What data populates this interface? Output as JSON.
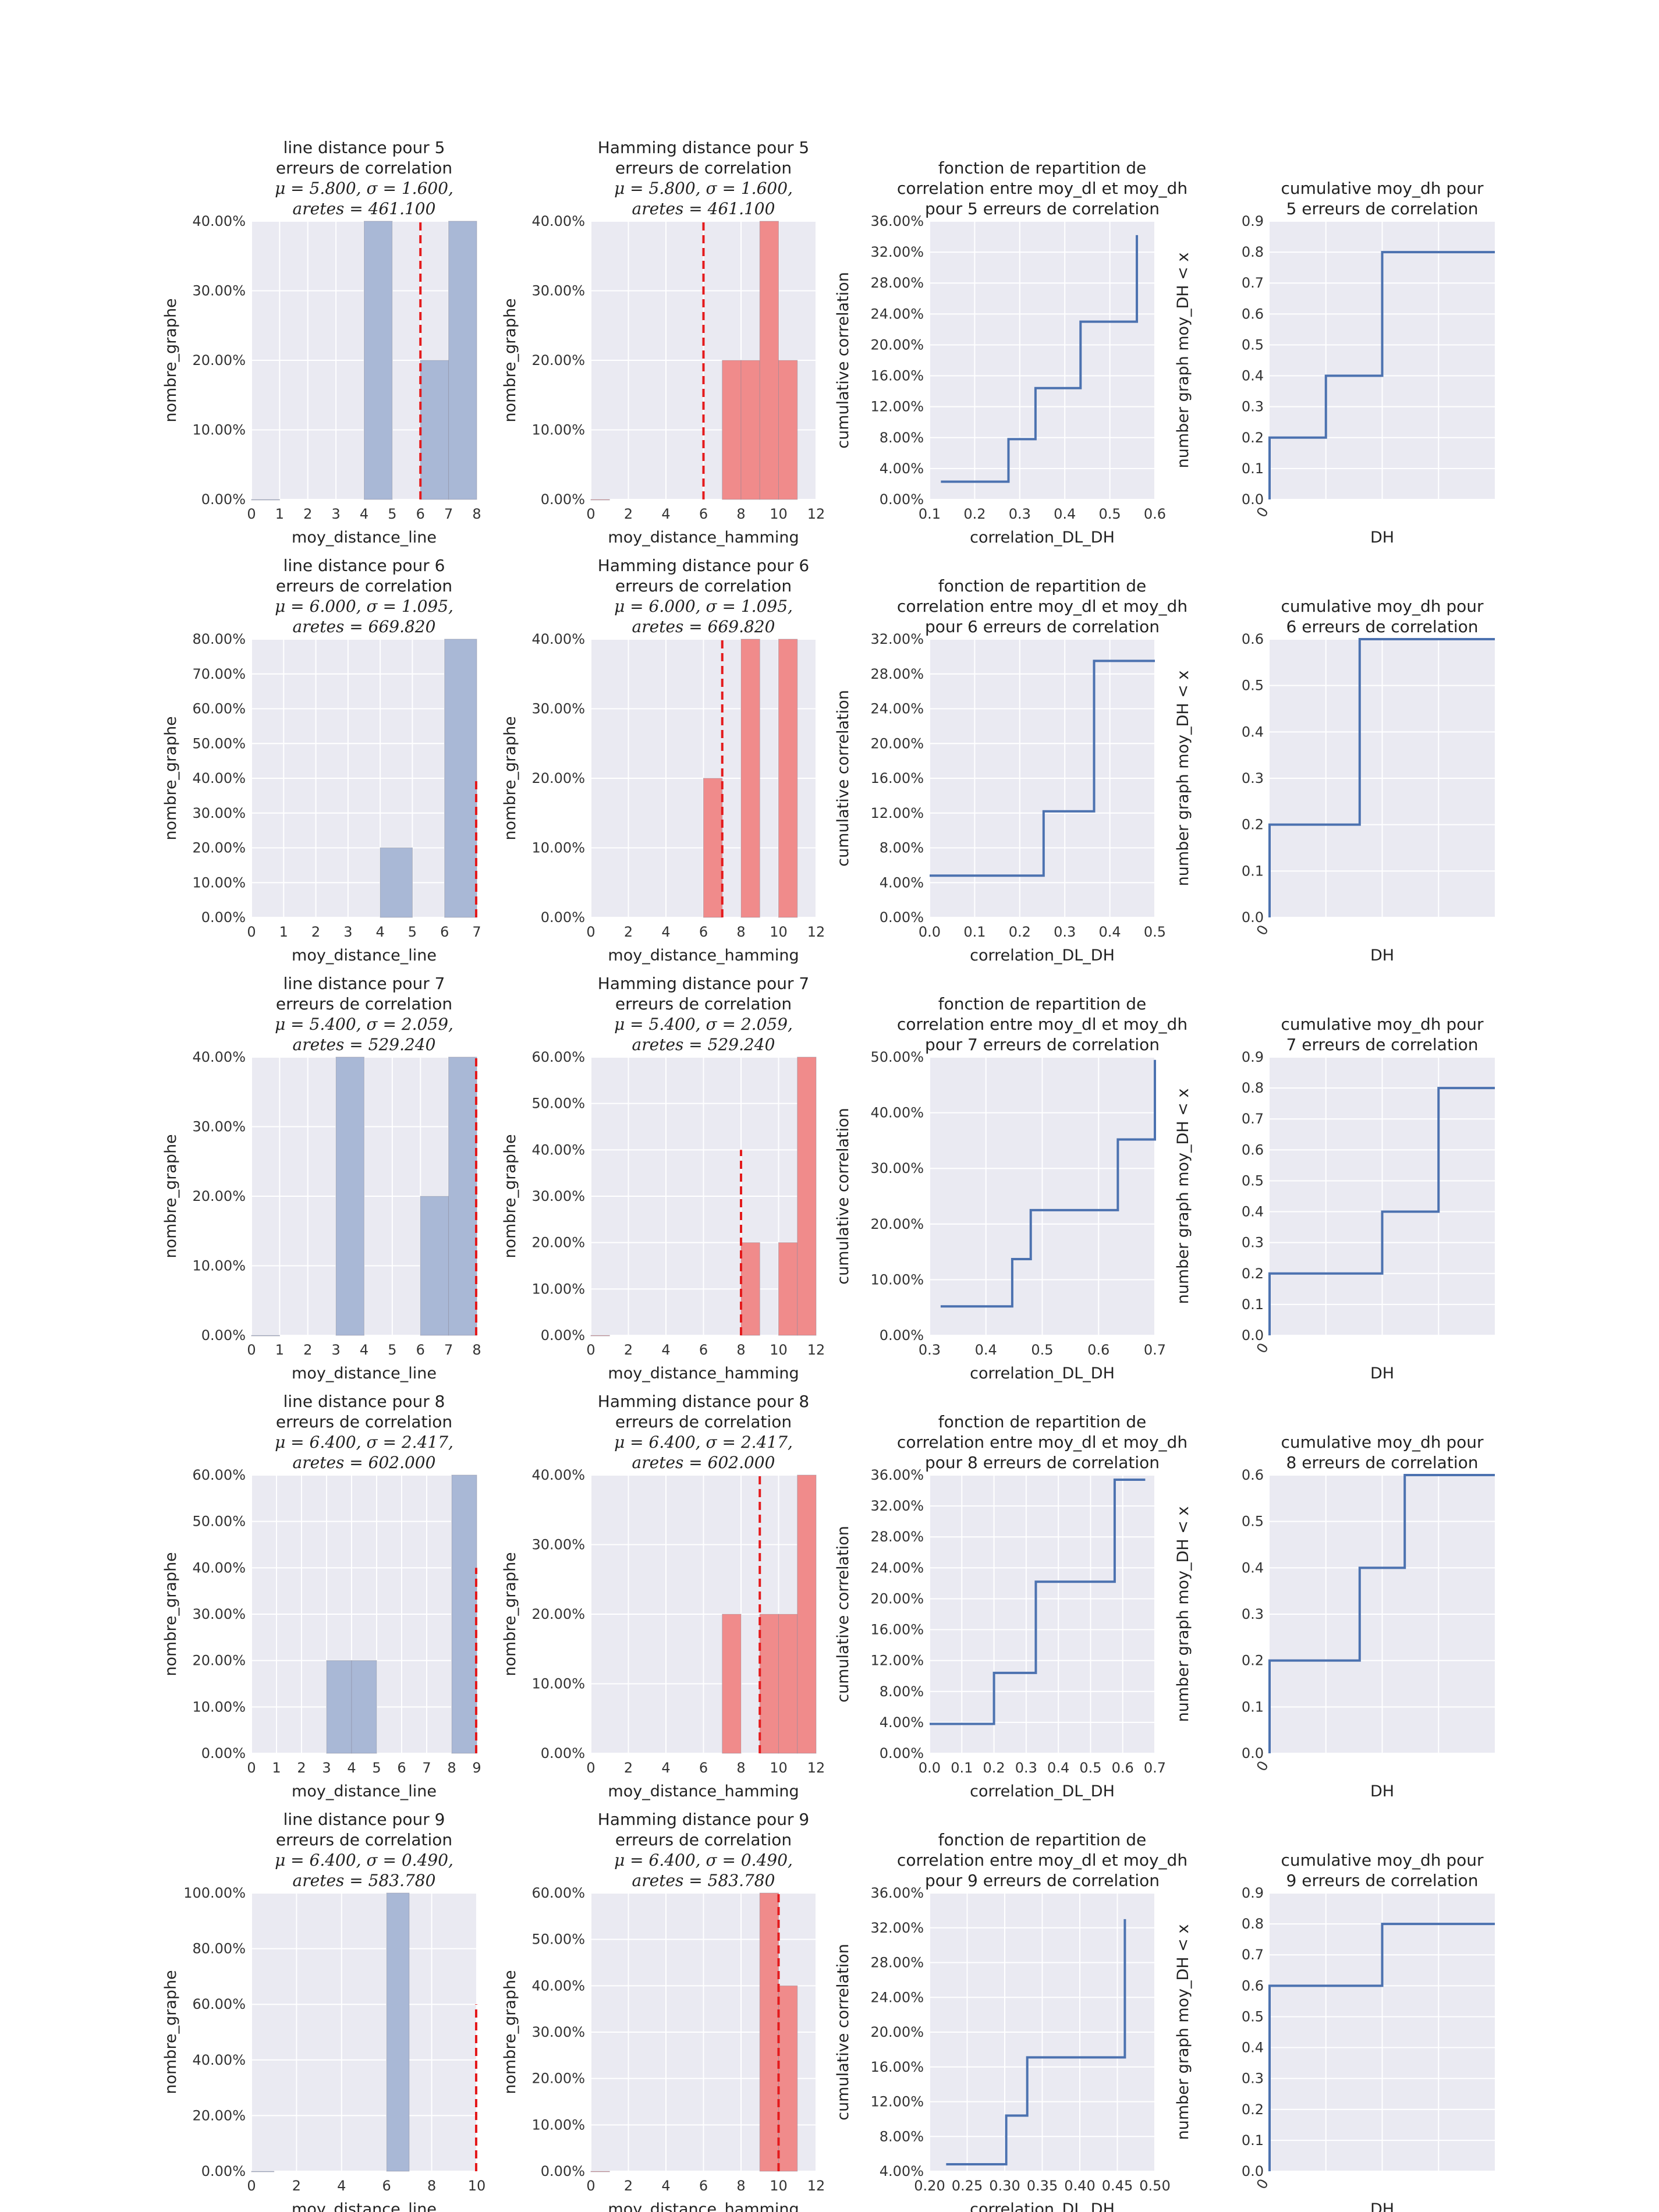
{
  "chart_data": [
    {
      "type": "bar",
      "title": "line distance pour 5\nerreurs de correlation",
      "subtitle": [
        "μ = 5.800, σ = 1.600,",
        "aretes = 461.100"
      ],
      "xlabel": "moy_distance_line",
      "ylabel": "nombre_graphe",
      "xlim": [
        0,
        8
      ],
      "ylim": [
        0,
        0.4
      ],
      "xticks": [
        "0",
        "1",
        "2",
        "3",
        "4",
        "5",
        "6",
        "7",
        "8"
      ],
      "yticks": [
        "0.00%",
        "10.00%",
        "20.00%",
        "30.00%",
        "40.00%"
      ],
      "bars": [
        {
          "x0": 0,
          "x1": 1,
          "value": 0
        },
        {
          "x0": 4,
          "x1": 5,
          "value": 0.4
        },
        {
          "x0": 6,
          "x1": 7,
          "value": 0.2
        },
        {
          "x0": 7,
          "x1": 8,
          "value": 0.4
        }
      ],
      "vline": {
        "x": 6,
        "y": [
          0,
          0.4
        ]
      },
      "color": "#a9b8d6"
    },
    {
      "type": "bar",
      "title": "Hamming distance pour 5\nerreurs de correlation",
      "subtitle": [
        "μ = 5.800, σ = 1.600,",
        "aretes = 461.100"
      ],
      "xlabel": "moy_distance_hamming",
      "ylabel": "nombre_graphe",
      "xlim": [
        0,
        12
      ],
      "ylim": [
        0,
        0.4
      ],
      "xticks": [
        "0",
        "2",
        "4",
        "6",
        "8",
        "10",
        "12"
      ],
      "yticks": [
        "0.00%",
        "10.00%",
        "20.00%",
        "30.00%",
        "40.00%"
      ],
      "bars": [
        {
          "x0": 0,
          "x1": 1,
          "value": 0
        },
        {
          "x0": 7,
          "x1": 8,
          "value": 0.2
        },
        {
          "x0": 8,
          "x1": 9,
          "value": 0.2
        },
        {
          "x0": 9,
          "x1": 10,
          "value": 0.4
        },
        {
          "x0": 10,
          "x1": 11,
          "value": 0.2
        }
      ],
      "vline": {
        "x": 6,
        "y": [
          0,
          0.4
        ]
      },
      "color": "#f08b8b"
    },
    {
      "type": "line",
      "title": "fonction de repartition de\ncorrelation entre moy_dl et moy_dh\npour 5 erreurs de correlation",
      "xlabel": "correlation_DL_DH",
      "ylabel": "cumulative correlation",
      "xlim": [
        0.1,
        0.6
      ],
      "ylim": [
        0,
        0.36
      ],
      "xticks": [
        "0.1",
        "0.2",
        "0.3",
        "0.4",
        "0.5",
        "0.6"
      ],
      "yticks": [
        "0.00%",
        "4.00%",
        "8.00%",
        "12.00%",
        "16.00%",
        "20.00%",
        "24.00%",
        "28.00%",
        "32.00%",
        "36.00%"
      ],
      "x": [
        0.125,
        0.275,
        0.335,
        0.435,
        0.56
      ],
      "y": [
        0.023,
        0.078,
        0.144,
        0.23,
        0.342
      ]
    },
    {
      "type": "line",
      "title": "cumulative moy_dh pour\n5 erreurs de correlation",
      "xlabel": "DH",
      "ylabel": "number graph moy_DH < x",
      "xlim": [
        0,
        4
      ],
      "ylim": [
        0,
        0.9
      ],
      "xticks": [
        "0"
      ],
      "yticks": [
        "0.0",
        "0.1",
        "0.2",
        "0.3",
        "0.4",
        "0.5",
        "0.6",
        "0.7",
        "0.8",
        "0.9"
      ],
      "x": [
        0,
        1,
        2,
        4
      ],
      "y": [
        0.2,
        0.4,
        0.8,
        0.8
      ]
    },
    {
      "type": "bar",
      "title": "line distance pour 6\nerreurs de correlation",
      "subtitle": [
        "μ = 6.000, σ = 1.095,",
        "aretes = 669.820"
      ],
      "xlabel": "moy_distance_line",
      "ylabel": "nombre_graphe",
      "xlim": [
        0,
        7
      ],
      "ylim": [
        0,
        0.8
      ],
      "xticks": [
        "0",
        "1",
        "2",
        "3",
        "4",
        "5",
        "6",
        "7"
      ],
      "yticks": [
        "0.00%",
        "10.00%",
        "20.00%",
        "30.00%",
        "40.00%",
        "50.00%",
        "60.00%",
        "70.00%",
        "80.00%"
      ],
      "bars": [
        {
          "x0": 4,
          "x1": 5,
          "value": 0.2
        },
        {
          "x0": 6,
          "x1": 7,
          "value": 0.8
        }
      ],
      "vline": {
        "x": 7,
        "y": [
          0,
          0.4
        ]
      },
      "color": "#a9b8d6"
    },
    {
      "type": "bar",
      "title": "Hamming distance pour 6\nerreurs de correlation",
      "subtitle": [
        "μ = 6.000, σ = 1.095,",
        "aretes = 669.820"
      ],
      "xlabel": "moy_distance_hamming",
      "ylabel": "nombre_graphe",
      "xlim": [
        0,
        12
      ],
      "ylim": [
        0,
        0.4
      ],
      "xticks": [
        "0",
        "2",
        "4",
        "6",
        "8",
        "10",
        "12"
      ],
      "yticks": [
        "0.00%",
        "10.00%",
        "20.00%",
        "30.00%",
        "40.00%"
      ],
      "bars": [
        {
          "x0": 6,
          "x1": 7,
          "value": 0.2
        },
        {
          "x0": 8,
          "x1": 9,
          "value": 0.4
        },
        {
          "x0": 10,
          "x1": 11,
          "value": 0.4
        }
      ],
      "vline": {
        "x": 7,
        "y": [
          0,
          0.4
        ]
      },
      "color": "#f08b8b"
    },
    {
      "type": "line",
      "title": "fonction de repartition de\ncorrelation entre moy_dl et moy_dh\npour 6 erreurs de correlation",
      "xlabel": "correlation_DL_DH",
      "ylabel": "cumulative correlation",
      "xlim": [
        0,
        0.5
      ],
      "ylim": [
        0,
        0.32
      ],
      "xticks": [
        "0.0",
        "0.1",
        "0.2",
        "0.3",
        "0.4",
        "0.5"
      ],
      "yticks": [
        "0.00%",
        "4.00%",
        "8.00%",
        "12.00%",
        "16.00%",
        "20.00%",
        "24.00%",
        "28.00%",
        "32.00%"
      ],
      "x": [
        0,
        0.253,
        0.365,
        0.5
      ],
      "y": [
        0.048,
        0.122,
        0.295,
        0.295
      ]
    },
    {
      "type": "line",
      "title": "cumulative moy_dh pour\n6 erreurs de correlation",
      "xlabel": "DH",
      "ylabel": "number graph moy_DH < x",
      "xlim": [
        0,
        4
      ],
      "ylim": [
        0,
        0.6
      ],
      "xticks": [
        "0"
      ],
      "yticks": [
        "0.0",
        "0.1",
        "0.2",
        "0.3",
        "0.4",
        "0.5",
        "0.6"
      ],
      "x": [
        0,
        1.6,
        4
      ],
      "y": [
        0.2,
        0.6,
        0.6
      ]
    },
    {
      "type": "bar",
      "title": "line distance pour 7\nerreurs de correlation",
      "subtitle": [
        "μ = 5.400, σ = 2.059,",
        "aretes = 529.240"
      ],
      "xlabel": "moy_distance_line",
      "ylabel": "nombre_graphe",
      "xlim": [
        0,
        8
      ],
      "ylim": [
        0,
        0.4
      ],
      "xticks": [
        "0",
        "1",
        "2",
        "3",
        "4",
        "5",
        "6",
        "7",
        "8"
      ],
      "yticks": [
        "0.00%",
        "10.00%",
        "20.00%",
        "30.00%",
        "40.00%"
      ],
      "bars": [
        {
          "x0": 0,
          "x1": 1,
          "value": 0
        },
        {
          "x0": 3,
          "x1": 4,
          "value": 0.4
        },
        {
          "x0": 6,
          "x1": 7,
          "value": 0.2
        },
        {
          "x0": 7,
          "x1": 8,
          "value": 0.4
        }
      ],
      "vline": {
        "x": 8,
        "y": [
          0,
          0.4
        ]
      },
      "color": "#a9b8d6"
    },
    {
      "type": "bar",
      "title": "Hamming distance pour 7\nerreurs de correlation",
      "subtitle": [
        "μ = 5.400, σ = 2.059,",
        "aretes = 529.240"
      ],
      "xlabel": "moy_distance_hamming",
      "ylabel": "nombre_graphe",
      "xlim": [
        0,
        12
      ],
      "ylim": [
        0,
        0.6
      ],
      "xticks": [
        "0",
        "2",
        "4",
        "6",
        "8",
        "10",
        "12"
      ],
      "yticks": [
        "0.00%",
        "10.00%",
        "20.00%",
        "30.00%",
        "40.00%",
        "50.00%",
        "60.00%"
      ],
      "bars": [
        {
          "x0": 0,
          "x1": 1,
          "value": 0
        },
        {
          "x0": 8,
          "x1": 9,
          "value": 0.2
        },
        {
          "x0": 10,
          "x1": 11,
          "value": 0.2
        },
        {
          "x0": 11,
          "x1": 12,
          "value": 0.6
        }
      ],
      "vline": {
        "x": 8,
        "y": [
          0,
          0.4
        ]
      },
      "color": "#f08b8b"
    },
    {
      "type": "line",
      "title": "fonction de repartition de\ncorrelation entre moy_dl et moy_dh\npour 7 erreurs de correlation",
      "xlabel": "correlation_DL_DH",
      "ylabel": "cumulative correlation",
      "xlim": [
        0.25,
        0.7
      ],
      "ylim": [
        0,
        0.5
      ],
      "xticks": [
        "0.3",
        "0.4",
        "0.5",
        "0.6",
        "0.7"
      ],
      "yticks": [
        "0.00%",
        "10.00%",
        "20.00%",
        "30.00%",
        "40.00%",
        "50.00%"
      ],
      "x": [
        0.272,
        0.415,
        0.452,
        0.626,
        0.7
      ],
      "y": [
        0.052,
        0.137,
        0.225,
        0.352,
        0.495
      ]
    },
    {
      "type": "line",
      "title": "cumulative moy_dh pour\n7 erreurs de correlation",
      "xlabel": "DH",
      "ylabel": "number graph moy_DH < x",
      "xlim": [
        0,
        4
      ],
      "ylim": [
        0,
        0.9
      ],
      "xticks": [
        "0"
      ],
      "yticks": [
        "0.0",
        "0.1",
        "0.2",
        "0.3",
        "0.4",
        "0.5",
        "0.6",
        "0.7",
        "0.8",
        "0.9"
      ],
      "x": [
        0,
        2,
        3,
        4
      ],
      "y": [
        0.2,
        0.4,
        0.8,
        0.8
      ]
    },
    {
      "type": "bar",
      "title": "line distance pour 8\nerreurs de correlation",
      "subtitle": [
        "μ = 6.400, σ = 2.417,",
        "aretes = 602.000"
      ],
      "xlabel": "moy_distance_line",
      "ylabel": "nombre_graphe",
      "xlim": [
        0,
        9
      ],
      "ylim": [
        0,
        0.6
      ],
      "xticks": [
        "0",
        "1",
        "2",
        "3",
        "4",
        "5",
        "6",
        "7",
        "8",
        "9"
      ],
      "yticks": [
        "0.00%",
        "10.00%",
        "20.00%",
        "30.00%",
        "40.00%",
        "50.00%",
        "60.00%"
      ],
      "bars": [
        {
          "x0": 3,
          "x1": 4,
          "value": 0.2
        },
        {
          "x0": 4,
          "x1": 5,
          "value": 0.2
        },
        {
          "x0": 8,
          "x1": 9,
          "value": 0.6
        }
      ],
      "vline": {
        "x": 9,
        "y": [
          0,
          0.4
        ]
      },
      "color": "#a9b8d6"
    },
    {
      "type": "bar",
      "title": "Hamming distance pour 8\nerreurs de correlation",
      "subtitle": [
        "μ = 6.400, σ = 2.417,",
        "aretes = 602.000"
      ],
      "xlabel": "moy_distance_hamming",
      "ylabel": "nombre_graphe",
      "xlim": [
        0,
        12
      ],
      "ylim": [
        0,
        0.4
      ],
      "xticks": [
        "0",
        "2",
        "4",
        "6",
        "8",
        "10",
        "12"
      ],
      "yticks": [
        "0.00%",
        "10.00%",
        "20.00%",
        "30.00%",
        "40.00%"
      ],
      "bars": [
        {
          "x0": 7,
          "x1": 8,
          "value": 0.2
        },
        {
          "x0": 9,
          "x1": 10,
          "value": 0.2
        },
        {
          "x0": 10,
          "x1": 11,
          "value": 0.2
        },
        {
          "x0": 11,
          "x1": 12,
          "value": 0.4
        }
      ],
      "vline": {
        "x": 9,
        "y": [
          0,
          0.4
        ]
      },
      "color": "#f08b8b"
    },
    {
      "type": "line",
      "title": "fonction de repartition de\ncorrelation entre moy_dl et moy_dh\npour 8 erreurs de correlation",
      "xlabel": "correlation_DL_DH",
      "ylabel": "cumulative correlation",
      "xlim": [
        0,
        0.7
      ],
      "ylim": [
        0,
        0.36
      ],
      "xticks": [
        "0.0",
        "0.1",
        "0.2",
        "0.3",
        "0.4",
        "0.5",
        "0.6",
        "0.7"
      ],
      "yticks": [
        "0.00%",
        "4.00%",
        "8.00%",
        "12.00%",
        "16.00%",
        "20.00%",
        "24.00%",
        "28.00%",
        "32.00%",
        "36.00%"
      ],
      "x": [
        0,
        0.2,
        0.33,
        0.575,
        0.67
      ],
      "y": [
        0.038,
        0.104,
        0.222,
        0.354,
        0.354
      ]
    },
    {
      "type": "line",
      "title": "cumulative moy_dh pour\n8 erreurs de correlation",
      "xlabel": "DH",
      "ylabel": "number graph moy_DH < x",
      "xlim": [
        0,
        4
      ],
      "ylim": [
        0,
        0.6
      ],
      "xticks": [
        "0"
      ],
      "yticks": [
        "0.0",
        "0.1",
        "0.2",
        "0.3",
        "0.4",
        "0.5",
        "0.6"
      ],
      "x": [
        0,
        1.6,
        2.4,
        4
      ],
      "y": [
        0.2,
        0.4,
        0.6,
        0.6
      ]
    },
    {
      "type": "bar",
      "title": "line distance pour 9\nerreurs de correlation",
      "subtitle": [
        "μ = 6.400, σ = 0.490,",
        "aretes = 583.780"
      ],
      "xlabel": "moy_distance_line",
      "ylabel": "nombre_graphe",
      "xlim": [
        0,
        10
      ],
      "ylim": [
        0,
        1.0
      ],
      "xticks": [
        "0",
        "2",
        "4",
        "6",
        "8",
        "10"
      ],
      "yticks": [
        "0.00%",
        "20.00%",
        "40.00%",
        "60.00%",
        "80.00%",
        "100.00%"
      ],
      "bars": [
        {
          "x0": 0,
          "x1": 1,
          "value": 0
        },
        {
          "x0": 6,
          "x1": 7,
          "value": 1.0
        }
      ],
      "vline": {
        "x": 10,
        "y": [
          0,
          0.6
        ]
      },
      "color": "#a9b8d6"
    },
    {
      "type": "bar",
      "title": "Hamming distance pour 9\nerreurs de correlation",
      "subtitle": [
        "μ = 6.400, σ = 0.490,",
        "aretes = 583.780"
      ],
      "xlabel": "moy_distance_hamming",
      "ylabel": "nombre_graphe",
      "xlim": [
        0,
        12
      ],
      "ylim": [
        0,
        0.6
      ],
      "xticks": [
        "0",
        "2",
        "4",
        "6",
        "8",
        "10",
        "12"
      ],
      "yticks": [
        "0.00%",
        "10.00%",
        "20.00%",
        "30.00%",
        "40.00%",
        "50.00%",
        "60.00%"
      ],
      "bars": [
        {
          "x0": 0,
          "x1": 1,
          "value": 0
        },
        {
          "x0": 9,
          "x1": 10,
          "value": 0.6
        },
        {
          "x0": 10,
          "x1": 11,
          "value": 0.4
        }
      ],
      "vline": {
        "x": 10,
        "y": [
          0,
          0.6
        ]
      },
      "color": "#f08b8b"
    },
    {
      "type": "line",
      "title": "fonction de repartition de\ncorrelation entre moy_dl et moy_dh\npour 9 erreurs de correlation",
      "xlabel": "correlation_DL_DH",
      "ylabel": "cumulative correlation",
      "xlim": [
        0.2,
        0.5
      ],
      "ylim": [
        0.04,
        0.36
      ],
      "xticks": [
        "0.20",
        "0.25",
        "0.30",
        "0.35",
        "0.40",
        "0.45",
        "0.50"
      ],
      "yticks": [
        "4.00%",
        "8.00%",
        "12.00%",
        "16.00%",
        "20.00%",
        "24.00%",
        "28.00%",
        "32.00%",
        "36.00%"
      ],
      "x": [
        0.222,
        0.302,
        0.33,
        0.46
      ],
      "y": [
        0.048,
        0.104,
        0.171,
        0.33
      ]
    },
    {
      "type": "line",
      "title": "cumulative moy_dh pour\n9 erreurs de correlation",
      "xlabel": "DH",
      "ylabel": "number graph moy_DH < x",
      "xlim": [
        0,
        4
      ],
      "ylim": [
        0,
        0.9
      ],
      "xticks": [
        "0"
      ],
      "yticks": [
        "0.0",
        "0.1",
        "0.2",
        "0.3",
        "0.4",
        "0.5",
        "0.6",
        "0.7",
        "0.8",
        "0.9"
      ],
      "x": [
        0,
        2,
        4
      ],
      "y": [
        0.6,
        0.8,
        0.8
      ]
    }
  ]
}
